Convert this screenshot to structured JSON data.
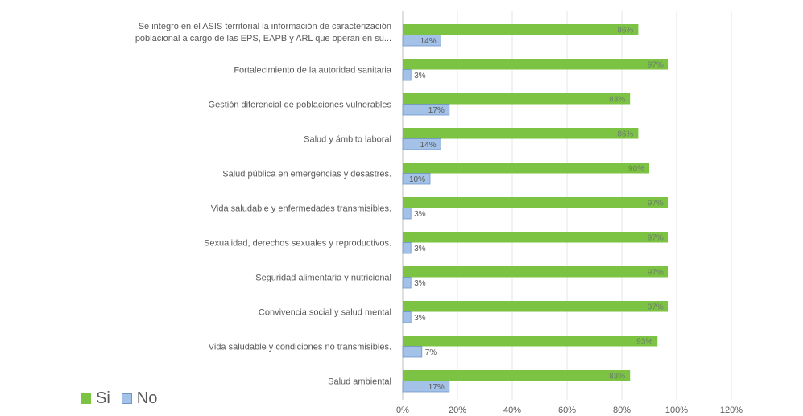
{
  "chart_data": {
    "type": "bar",
    "orientation": "horizontal",
    "categories": [
      "Se integró en el ASIS territorial la información de caracterización poblacional a cargo de las EPS, EAPB y ARL que operan en su...",
      "Fortalecimiento de la autoridad sanitaria",
      "Gestión diferencial de poblaciones vulnerables",
      "Salud y ámbito laboral",
      "Salud pública en emergencias y desastres.",
      "Vida saludable y enfermedades transmisibles.",
      "Sexualidad, derechos sexuales y reproductivos.",
      "Seguridad alimentaria y nutricional",
      "Convivencia social y salud mental",
      "Vida saludable y condiciones no transmisibles.",
      "Salud ambiental"
    ],
    "category_lines": [
      [
        "Se integró en el ASIS territorial la información de caracterización",
        "poblacional a cargo de las EPS, EAPB y ARL que operan en su..."
      ],
      [
        "Fortalecimiento de la autoridad sanitaria"
      ],
      [
        "Gestión diferencial de poblaciones vulnerables"
      ],
      [
        "Salud y ámbito laboral"
      ],
      [
        "Salud pública en emergencias y desastres."
      ],
      [
        "Vida saludable y enfermedades transmisibles."
      ],
      [
        "Sexualidad, derechos sexuales y reproductivos."
      ],
      [
        "Seguridad alimentaria y nutricional"
      ],
      [
        "Convivencia social y salud mental"
      ],
      [
        "Vida saludable y condiciones no transmisibles."
      ],
      [
        "Salud ambiental"
      ]
    ],
    "series": [
      {
        "name": "Si",
        "color": "#7cc243",
        "values": [
          86,
          97,
          83,
          86,
          90,
          97,
          97,
          97,
          97,
          93,
          83
        ],
        "labels": [
          "86%",
          "97%",
          "83%",
          "86%",
          "90%",
          "97%",
          "97%",
          "97%",
          "97%",
          "93%",
          "83%"
        ]
      },
      {
        "name": "No",
        "color": "#a4c2e8",
        "values": [
          14,
          3,
          17,
          14,
          10,
          3,
          3,
          3,
          3,
          7,
          17
        ],
        "labels": [
          "14%",
          "3%",
          "17%",
          "14%",
          "10%",
          "3%",
          "3%",
          "3%",
          "3%",
          "7%",
          "17%"
        ]
      }
    ],
    "xlim": [
      0,
      120
    ],
    "xticks": [
      "0%",
      "20%",
      "40%",
      "60%",
      "80%",
      "100%",
      "120%"
    ],
    "grid": true,
    "legend_position": "bottom-left",
    "title": "",
    "xlabel": "",
    "ylabel": ""
  }
}
